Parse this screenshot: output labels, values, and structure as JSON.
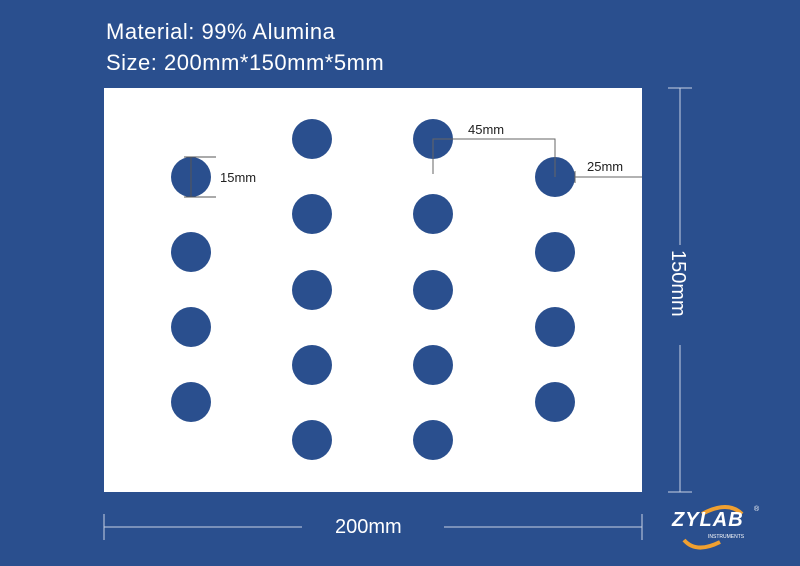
{
  "header": {
    "material": "Material:  99% Alumina",
    "size": "Size:  200mm*150mm*5mm"
  },
  "dimensions": {
    "hole_diameter": "15mm",
    "column_spacing": "45mm",
    "edge_margin": "25mm",
    "height": "150mm",
    "width": "200mm"
  },
  "logo": {
    "name": "ZYLAB",
    "subtitle": "INSTRUMENTS",
    "registered": "®"
  },
  "colors": {
    "background": "#2a4f8e",
    "plate": "#ffffff",
    "hole": "#2a4f8e",
    "logo_swoosh": "#f0a030",
    "dimension_line": "#888888"
  }
}
